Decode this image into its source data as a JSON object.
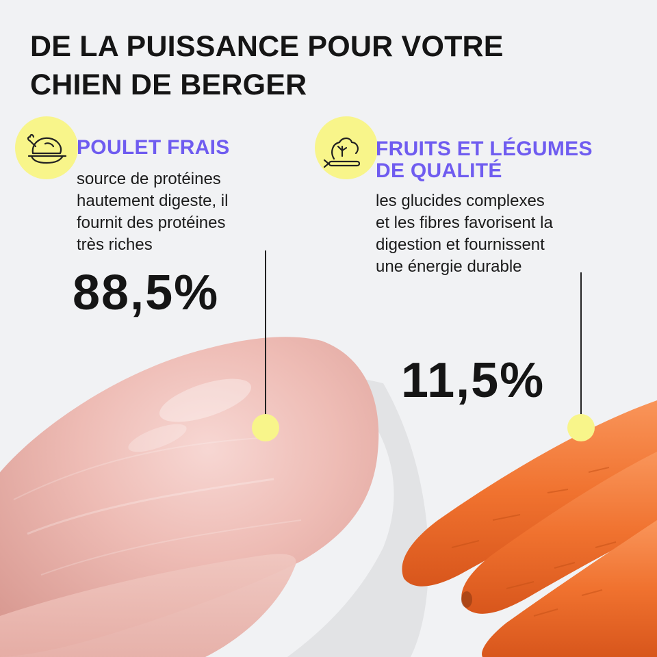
{
  "headline": {
    "line1": "DE LA PUISSANCE POUR VOTRE",
    "line2": "CHIEN DE BERGER"
  },
  "features": [
    {
      "icon": "roast-chicken-icon",
      "title_lines": [
        "POULET FRAIS"
      ],
      "desc_lines": [
        "source de protéines",
        "hautement digeste, il",
        "fournit des protéines",
        "très riches"
      ],
      "percent": "88,5%"
    },
    {
      "icon": "vegetables-icon",
      "title_lines": [
        "FRUITS ET LÉGUMES",
        "DE QUALITÉ"
      ],
      "desc_lines": [
        "les glucides complexes",
        "et les fibres favorisent la",
        "digestion et fournissent",
        "une énergie durable"
      ],
      "percent": "11,5%"
    }
  ],
  "colors": {
    "background": "#f1f2f4",
    "accent_purple": "#6f5cf0",
    "highlight_yellow": "#f8f58a",
    "text_dark": "#151515"
  }
}
